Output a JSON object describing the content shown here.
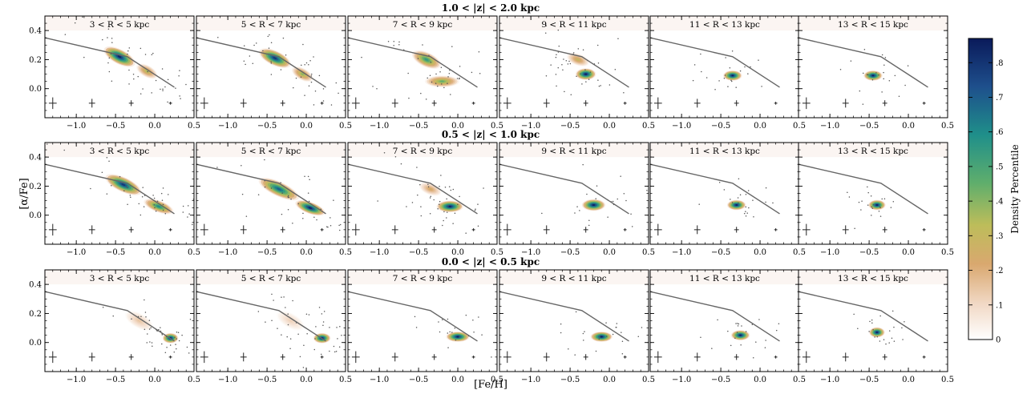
{
  "figure": {
    "xlabel": "[Fe/H]",
    "ylabel": "[α/Fe]",
    "colorbar_label": "Density Percentile",
    "colorbar_ticks": [
      "0",
      ".1",
      ".2",
      ".3",
      ".4",
      ".5",
      ".6",
      ".7",
      ".8"
    ],
    "x_tick_labels": [
      "−1.0",
      "−0.5",
      "0.0",
      "0.5"
    ],
    "y_tick_labels": [
      "0.0",
      "0.2",
      "0.4"
    ]
  },
  "chart_data": {
    "type": "heatmap",
    "xlim": [
      -1.4,
      0.5
    ],
    "ylim": [
      -0.2,
      0.5
    ],
    "x_ticks": [
      -1.0,
      -0.5,
      0.0,
      0.5
    ],
    "y_ticks": [
      0.0,
      0.2,
      0.4
    ],
    "colorbar": {
      "min": 0,
      "max": 0.87,
      "ticks": [
        0,
        0.1,
        0.2,
        0.3,
        0.4,
        0.5,
        0.6,
        0.7,
        0.8
      ]
    },
    "columns": [
      "3 < R < 5 kpc",
      "5 < R < 7 kpc",
      "7 < R < 9 kpc",
      "9 < R < 11 kpc",
      "11 < R < 13 kpc",
      "13 < R < 15 kpc"
    ],
    "dividing_line": {
      "x": [
        -1.4,
        -0.35,
        0.25
      ],
      "y": [
        0.35,
        0.22,
        0.01
      ]
    },
    "error_bar_positions": [
      {
        "x": -1.3,
        "y": -0.1,
        "xerr": 0.05,
        "yerr": 0.04
      },
      {
        "x": -0.8,
        "y": -0.1,
        "xerr": 0.04,
        "yerr": 0.03
      },
      {
        "x": -0.3,
        "y": -0.1,
        "xerr": 0.03,
        "yerr": 0.02
      },
      {
        "x": 0.2,
        "y": -0.1,
        "xerr": 0.02,
        "yerr": 0.01
      }
    ],
    "rows": [
      {
        "title": "1.0 < |z| < 2.0 kpc",
        "panels": [
          {
            "label": "3 < R < 5 kpc",
            "blobs": [
              {
                "x": -0.45,
                "y": 0.22,
                "sx": 0.22,
                "sy": 0.05,
                "tilt": -0.28,
                "peak": 0.85
              },
              {
                "x": -0.1,
                "y": 0.12,
                "sx": 0.15,
                "sy": 0.04,
                "tilt": -0.3,
                "peak": 0.35
              }
            ]
          },
          {
            "label": "5 < R < 7 kpc",
            "blobs": [
              {
                "x": -0.4,
                "y": 0.21,
                "sx": 0.22,
                "sy": 0.05,
                "tilt": -0.25,
                "peak": 0.8
              },
              {
                "x": -0.05,
                "y": 0.1,
                "sx": 0.15,
                "sy": 0.04,
                "tilt": -0.3,
                "peak": 0.4
              }
            ]
          },
          {
            "label": "7 < R < 9 kpc",
            "blobs": [
              {
                "x": -0.4,
                "y": 0.2,
                "sx": 0.2,
                "sy": 0.05,
                "tilt": -0.25,
                "peak": 0.55
              },
              {
                "x": -0.2,
                "y": 0.05,
                "sx": 0.22,
                "sy": 0.04,
                "tilt": 0,
                "peak": 0.45
              }
            ]
          },
          {
            "label": "9 < R < 11 kpc",
            "blobs": [
              {
                "x": -0.3,
                "y": 0.1,
                "sx": 0.13,
                "sy": 0.04,
                "tilt": 0,
                "peak": 0.85
              },
              {
                "x": -0.4,
                "y": 0.2,
                "sx": 0.15,
                "sy": 0.04,
                "tilt": -0.2,
                "peak": 0.3
              }
            ]
          },
          {
            "label": "11 < R < 13 kpc",
            "blobs": [
              {
                "x": -0.35,
                "y": 0.09,
                "sx": 0.12,
                "sy": 0.035,
                "tilt": 0,
                "peak": 0.85
              }
            ]
          },
          {
            "label": "13 < R < 15 kpc",
            "blobs": [
              {
                "x": -0.45,
                "y": 0.09,
                "sx": 0.12,
                "sy": 0.035,
                "tilt": 0,
                "peak": 0.85
              }
            ]
          }
        ]
      },
      {
        "title": "0.5 < |z| < 1.0 kpc",
        "panels": [
          {
            "label": "3 < R < 5 kpc",
            "blobs": [
              {
                "x": -0.4,
                "y": 0.21,
                "sx": 0.25,
                "sy": 0.05,
                "tilt": -0.25,
                "peak": 0.8
              },
              {
                "x": 0.05,
                "y": 0.06,
                "sx": 0.2,
                "sy": 0.04,
                "tilt": -0.2,
                "peak": 0.6
              }
            ]
          },
          {
            "label": "5 < R < 7 kpc",
            "blobs": [
              {
                "x": -0.35,
                "y": 0.18,
                "sx": 0.28,
                "sy": 0.05,
                "tilt": -0.25,
                "peak": 0.7
              },
              {
                "x": 0.05,
                "y": 0.05,
                "sx": 0.2,
                "sy": 0.04,
                "tilt": -0.2,
                "peak": 0.85
              }
            ]
          },
          {
            "label": "7 < R < 9 kpc",
            "blobs": [
              {
                "x": -0.1,
                "y": 0.06,
                "sx": 0.17,
                "sy": 0.04,
                "tilt": 0,
                "peak": 0.85
              },
              {
                "x": -0.35,
                "y": 0.18,
                "sx": 0.15,
                "sy": 0.04,
                "tilt": -0.2,
                "peak": 0.25
              }
            ]
          },
          {
            "label": "9 < R < 11 kpc",
            "blobs": [
              {
                "x": -0.2,
                "y": 0.07,
                "sx": 0.15,
                "sy": 0.04,
                "tilt": 0,
                "peak": 0.85
              }
            ]
          },
          {
            "label": "11 < R < 13 kpc",
            "blobs": [
              {
                "x": -0.3,
                "y": 0.07,
                "sx": 0.12,
                "sy": 0.035,
                "tilt": 0,
                "peak": 0.85
              }
            ]
          },
          {
            "label": "13 < R < 15 kpc",
            "blobs": [
              {
                "x": -0.4,
                "y": 0.07,
                "sx": 0.11,
                "sy": 0.035,
                "tilt": 0,
                "peak": 0.85
              }
            ]
          }
        ]
      },
      {
        "title": "0.0 < |z| < 0.5 kpc",
        "panels": [
          {
            "label": "3 < R < 5 kpc",
            "blobs": [
              {
                "x": 0.2,
                "y": 0.03,
                "sx": 0.1,
                "sy": 0.035,
                "tilt": 0,
                "peak": 0.85
              },
              {
                "x": -0.2,
                "y": 0.15,
                "sx": 0.2,
                "sy": 0.05,
                "tilt": -0.3,
                "peak": 0.15
              }
            ]
          },
          {
            "label": "5 < R < 7 kpc",
            "blobs": [
              {
                "x": 0.2,
                "y": 0.03,
                "sx": 0.11,
                "sy": 0.035,
                "tilt": 0,
                "peak": 0.85
              },
              {
                "x": -0.2,
                "y": 0.15,
                "sx": 0.2,
                "sy": 0.05,
                "tilt": -0.3,
                "peak": 0.12
              }
            ]
          },
          {
            "label": "7 < R < 9 kpc",
            "blobs": [
              {
                "x": 0.0,
                "y": 0.04,
                "sx": 0.15,
                "sy": 0.035,
                "tilt": 0,
                "peak": 0.85
              }
            ]
          },
          {
            "label": "9 < R < 11 kpc",
            "blobs": [
              {
                "x": -0.1,
                "y": 0.04,
                "sx": 0.14,
                "sy": 0.035,
                "tilt": 0,
                "peak": 0.85
              }
            ]
          },
          {
            "label": "11 < R < 13 kpc",
            "blobs": [
              {
                "x": -0.25,
                "y": 0.05,
                "sx": 0.12,
                "sy": 0.035,
                "tilt": 0,
                "peak": 0.85
              }
            ]
          },
          {
            "label": "13 < R < 15 kpc",
            "blobs": [
              {
                "x": -0.4,
                "y": 0.07,
                "sx": 0.1,
                "sy": 0.035,
                "tilt": 0,
                "peak": 0.85
              }
            ]
          }
        ]
      }
    ]
  }
}
